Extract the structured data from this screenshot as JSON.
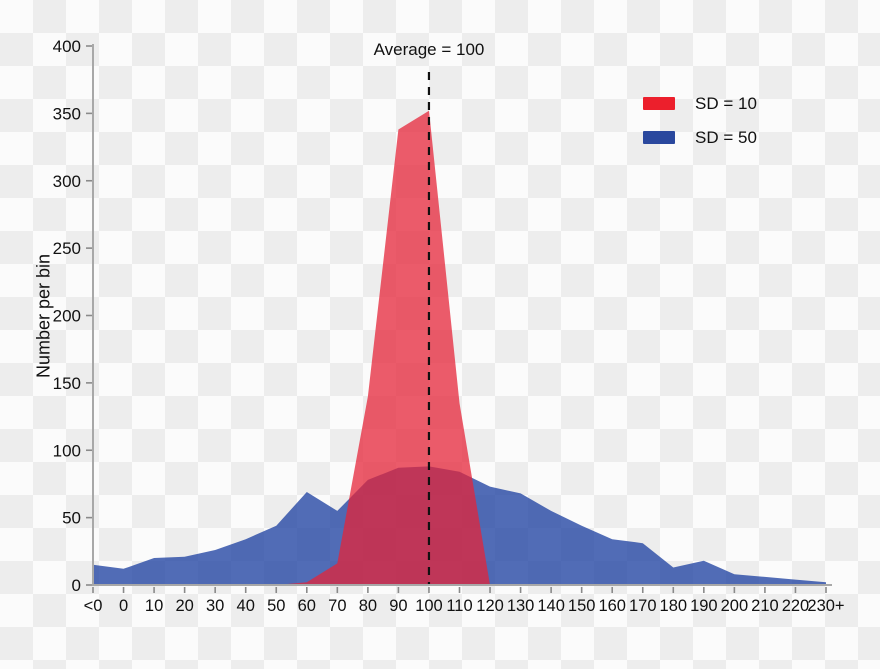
{
  "chart_data": {
    "type": "area",
    "title": "",
    "xlabel": "",
    "ylabel": "Number per bin",
    "categories": [
      "<0",
      "0",
      "10",
      "20",
      "30",
      "40",
      "50",
      "60",
      "70",
      "80",
      "90",
      "100",
      "110",
      "120",
      "130",
      "140",
      "150",
      "160",
      "170",
      "180",
      "190",
      "200",
      "210",
      "220",
      "230+"
    ],
    "series": [
      {
        "name": "SD = 10",
        "legend_color": "#EC1F2C",
        "fill_color": "#E62337",
        "fill_opacity": 0.74,
        "values": [
          0,
          0,
          0,
          0,
          0,
          0,
          0,
          2,
          16,
          140,
          338,
          352,
          135,
          0,
          0,
          0,
          0,
          0,
          0,
          0,
          0,
          0,
          0,
          0,
          0
        ]
      },
      {
        "name": "SD = 50",
        "legend_color": "#2A489E",
        "fill_color": "#2B4CA6",
        "fill_opacity": 0.82,
        "values": [
          15,
          12,
          20,
          21,
          26,
          34,
          44,
          69,
          55,
          78,
          87,
          88,
          84,
          73,
          68,
          55,
          44,
          34,
          31,
          13,
          18,
          8,
          6,
          4,
          2
        ]
      }
    ],
    "yticks": [
      0,
      50,
      100,
      150,
      200,
      250,
      300,
      350,
      400
    ],
    "ylim": [
      0,
      400
    ],
    "grid": false,
    "legend_position": "top-right",
    "annotation": {
      "text": "Average = 100",
      "x_category": "100",
      "line_style": "dashed"
    },
    "axis_color": "#a8a8a8",
    "tick_color": "#8a8a8a",
    "text_color": "#111111",
    "background": "transparency-checkerboard"
  }
}
